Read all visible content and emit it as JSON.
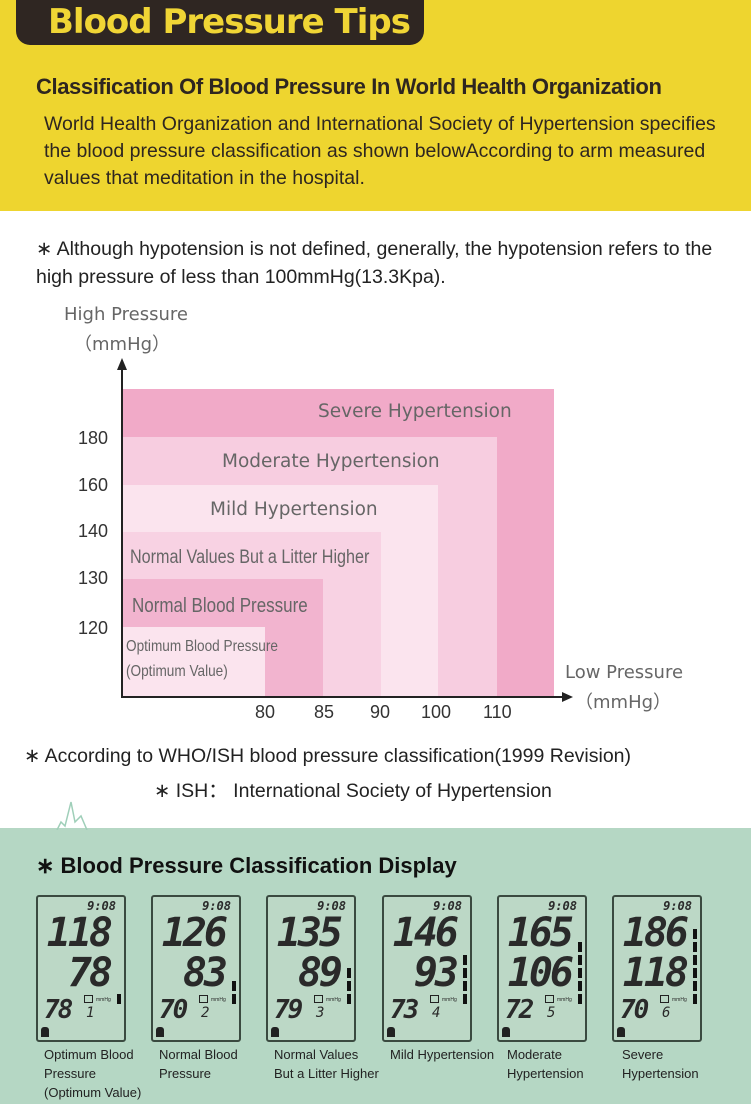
{
  "header": {
    "title": "Blood Pressure Tips"
  },
  "section1": {
    "heading": "Classification Of Blood Pressure In World Health Organization",
    "intro": "World Health Organization and International Society of Hypertension specifies the blood pressure classification as shown belowAccording to arm measured values that meditation in the hospital."
  },
  "notes": {
    "hypotension": "∗ Although hypotension is not defined, generally, the hypotension refers to the high pressure of less than 100mmHg(13.3Kpa).",
    "source": "∗ According to WHO/ISH blood pressure classification(1999 Revision)",
    "ish": "∗ ISH：  International Society of Hypertension"
  },
  "chart": {
    "y_label": "High Pressure",
    "y_unit": "（mmHg）",
    "x_label": "Low Pressure",
    "x_unit": "（mmHg）",
    "y_ticks": [
      "180",
      "160",
      "140",
      "130",
      "120"
    ],
    "x_ticks": [
      "80",
      "85",
      "90",
      "100",
      "110"
    ],
    "zones": [
      {
        "label": "Severe Hypertension",
        "color": "#f1aac8"
      },
      {
        "label": "Moderate Hypertension",
        "color": "#f7cde0"
      },
      {
        "label": "Mild Hypertension",
        "color": "#fbe4ee"
      },
      {
        "label": "Normal Values But a Litter Higher",
        "color": "#f8d2e3"
      },
      {
        "label": "Normal Blood Pressure",
        "color": "#f2b4cf"
      },
      {
        "label": "Optimum Blood Pressure",
        "label2": "(Optimum Value)",
        "color": "#fbe4ee"
      }
    ]
  },
  "display": {
    "heading": "∗  Blood Pressure Classification Display",
    "panels": [
      {
        "time": "9:08",
        "sys": "118",
        "dia": "78",
        "pulse": "78",
        "mem": "1",
        "unit": "mmHg",
        "bars": 1,
        "cap": [
          "Optimum Blood",
          "Pressure",
          "(Optimum Value)"
        ]
      },
      {
        "time": "9:08",
        "sys": "126",
        "dia": "83",
        "pulse": "70",
        "mem": "2",
        "unit": "mmHg",
        "bars": 2,
        "cap": [
          "Normal Blood",
          "Pressure"
        ]
      },
      {
        "time": "9:08",
        "sys": "135",
        "dia": "89",
        "pulse": "79",
        "mem": "3",
        "unit": "mmHg",
        "bars": 3,
        "cap": [
          "Normal Values",
          "But a Litter Higher"
        ]
      },
      {
        "time": "9:08",
        "sys": "146",
        "dia": "93",
        "pulse": "73",
        "mem": "4",
        "unit": "mmHg",
        "bars": 4,
        "cap": [
          "Mild Hypertension"
        ]
      },
      {
        "time": "9:08",
        "sys": "165",
        "dia": "106",
        "pulse": "72",
        "mem": "5",
        "unit": "mmHg",
        "bars": 5,
        "cap": [
          "Moderate",
          "Hypertension"
        ]
      },
      {
        "time": "9:08",
        "sys": "186",
        "dia": "118",
        "pulse": "70",
        "mem": "6",
        "unit": "mmHg",
        "bars": 6,
        "cap": [
          "Severe",
          "Hypertension"
        ]
      }
    ]
  }
}
